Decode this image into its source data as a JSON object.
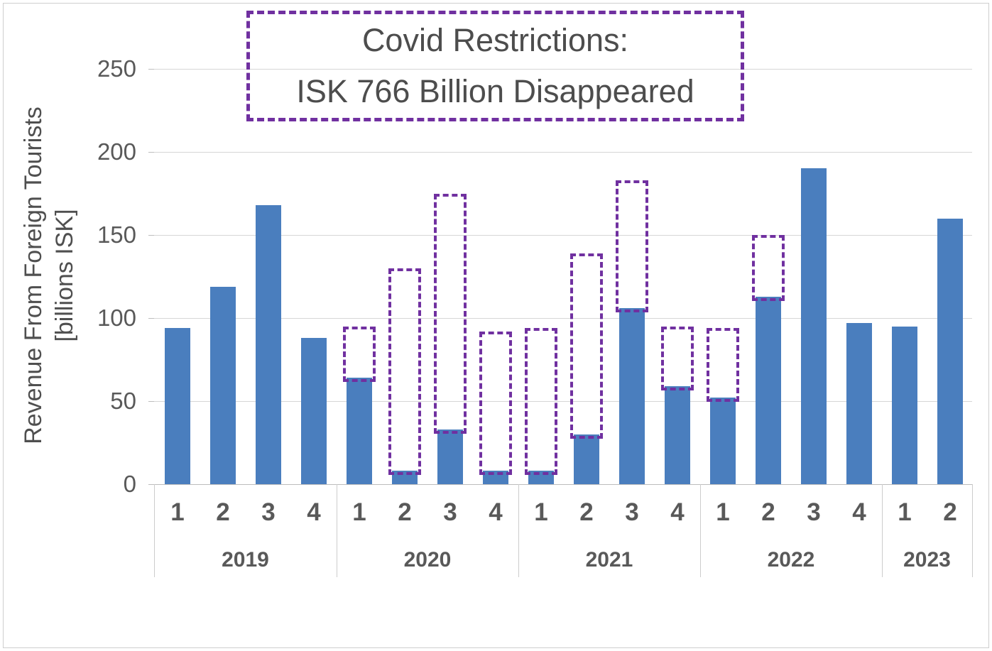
{
  "title": {
    "line1": "Covid Restrictions:",
    "line2": "ISK 766 Billion Disappeared"
  },
  "y_axis": {
    "title_line1": "Revenue From Foreign Tourists",
    "title_line2": "[billions ISK]",
    "ticks": [
      0,
      50,
      100,
      150,
      200,
      250
    ]
  },
  "colors": {
    "bar": "#4a7ebe",
    "dashed_outline": "#7030a0",
    "label_text": "#595959",
    "title_text": "#4d4d4d",
    "gridline": "#d6d6d6"
  },
  "chart_data": {
    "type": "bar",
    "title": "Covid Restrictions: ISK 766 Billion Disappeared",
    "ylabel": "Revenue From Foreign Tourists [billions ISK]",
    "ylim": [
      0,
      250
    ],
    "grid": true,
    "legend": "none",
    "series_note": "solid blue = actual revenue; purple dashed outline = pre-covid expected revenue; gap sums to ISK 766 billion",
    "groups": [
      {
        "year": "2019",
        "quarters": [
          "1",
          "2",
          "3",
          "4"
        ],
        "actual": [
          94,
          119,
          168,
          88
        ],
        "expected": [
          null,
          null,
          null,
          null
        ]
      },
      {
        "year": "2020",
        "quarters": [
          "1",
          "2",
          "3",
          "4"
        ],
        "actual": [
          64,
          8,
          33,
          8
        ],
        "expected": [
          95,
          130,
          175,
          92
        ]
      },
      {
        "year": "2021",
        "quarters": [
          "1",
          "2",
          "3",
          "4"
        ],
        "actual": [
          8,
          30,
          106,
          59
        ],
        "expected": [
          94,
          139,
          183,
          95
        ]
      },
      {
        "year": "2022",
        "quarters": [
          "1",
          "2",
          "3",
          "4"
        ],
        "actual": [
          52,
          113,
          190,
          97
        ],
        "expected": [
          94,
          150,
          null,
          null
        ]
      },
      {
        "year": "2023",
        "quarters": [
          "1",
          "2"
        ],
        "actual": [
          95,
          160
        ],
        "expected": [
          null,
          null
        ]
      }
    ]
  }
}
